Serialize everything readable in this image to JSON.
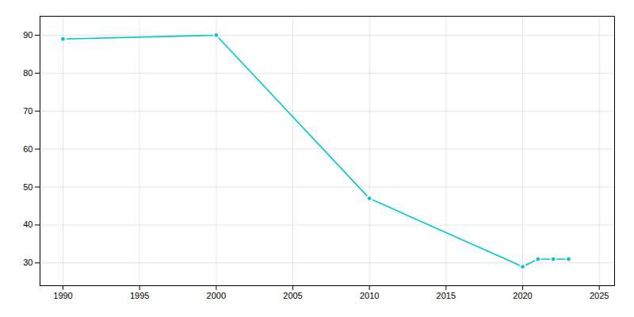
{
  "chart_data": {
    "type": "line",
    "x": [
      1990,
      2000,
      2010,
      2020,
      2021,
      2022,
      2023
    ],
    "values": [
      89,
      90,
      47,
      29,
      31,
      31,
      31
    ],
    "color": "#00C8C8",
    "marker": "circle",
    "xlim": [
      1988.5,
      2026
    ],
    "ylim": [
      24,
      95
    ],
    "xticks": [
      1990,
      1995,
      2000,
      2005,
      2010,
      2015,
      2020,
      2025
    ],
    "yticks": [
      30,
      40,
      50,
      60,
      70,
      80,
      90
    ],
    "grid": true
  }
}
